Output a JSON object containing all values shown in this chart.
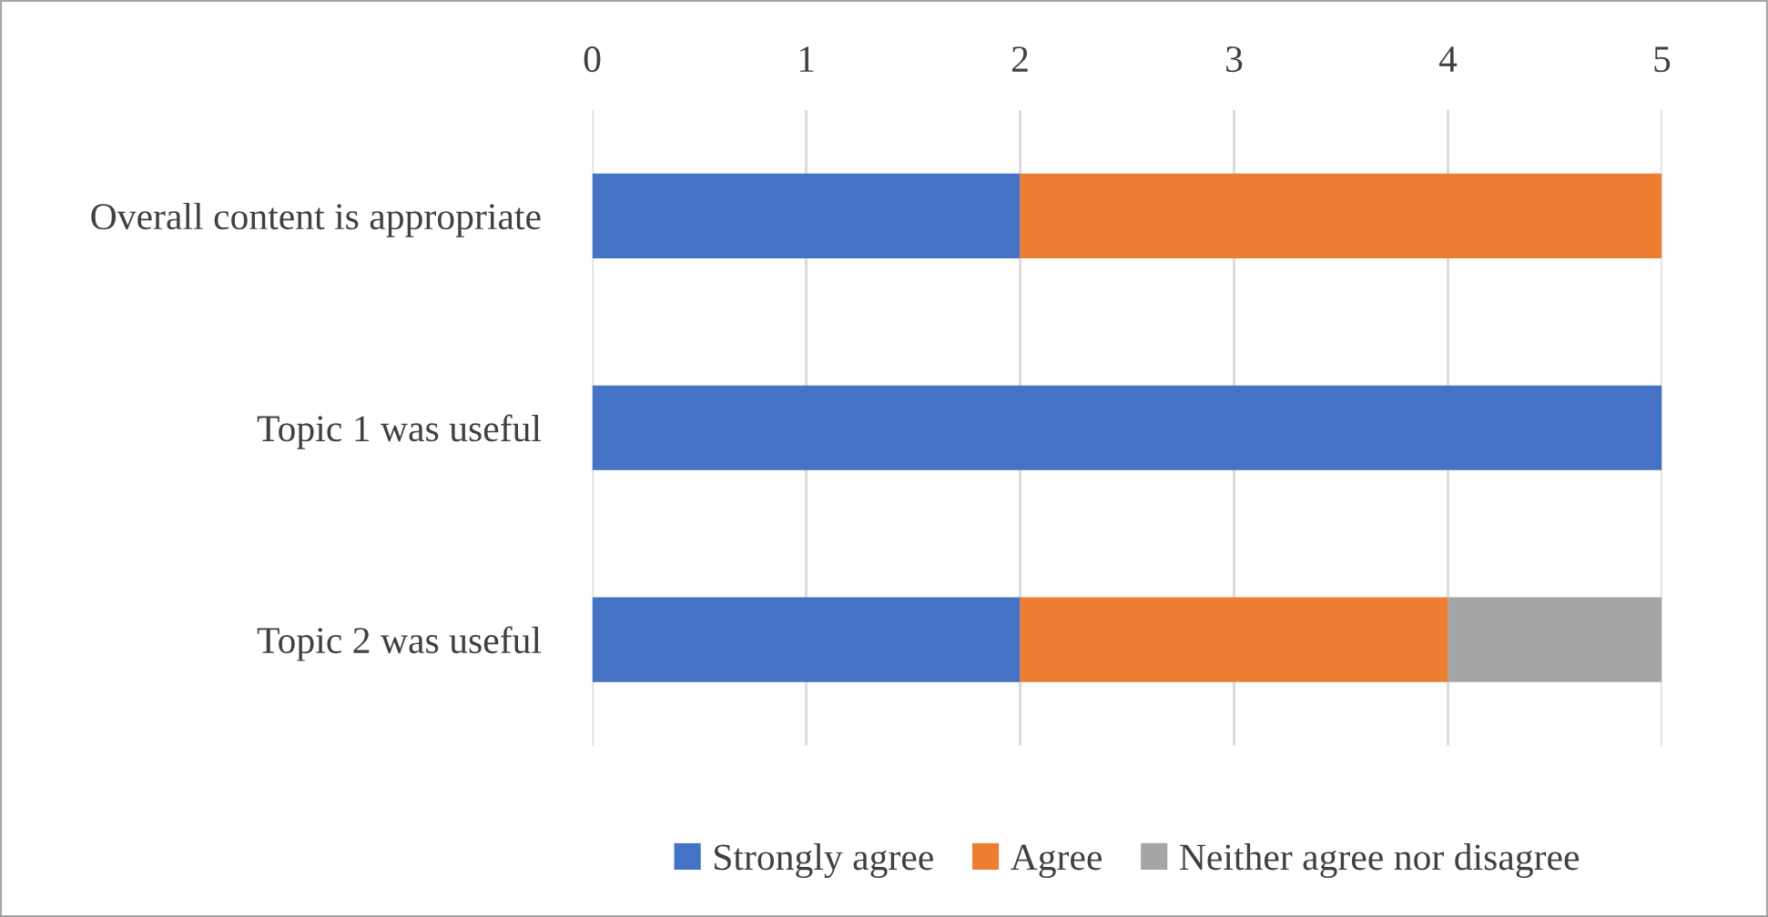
{
  "chart_data": {
    "type": "bar",
    "orientation": "horizontal",
    "stacked": true,
    "categories": [
      "Overall content is appropriate",
      "Topic 1 was useful",
      "Topic 2 was useful"
    ],
    "series": [
      {
        "name": "Strongly agree",
        "color": "#4472c4",
        "values": [
          2,
          5,
          2
        ]
      },
      {
        "name": "Agree",
        "color": "#ed7d31",
        "values": [
          3,
          0,
          2
        ]
      },
      {
        "name": "Neither agree nor disagree",
        "color": "#a5a5a5",
        "values": [
          0,
          0,
          1
        ]
      }
    ],
    "xlim": [
      0,
      5
    ],
    "xticks": [
      0,
      1,
      2,
      3,
      4,
      5
    ],
    "grid": "x",
    "legend": "bottom"
  }
}
